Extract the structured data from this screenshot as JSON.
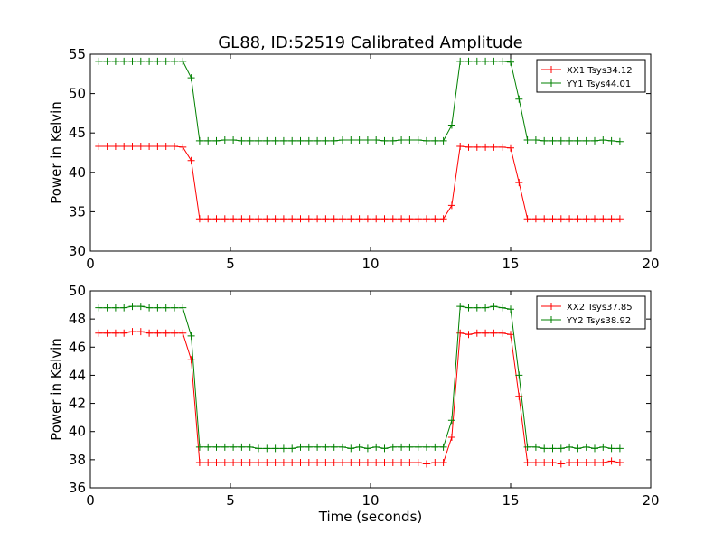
{
  "title": "GL88, ID:52519 Calibrated Amplitude",
  "chart_data": [
    {
      "type": "line",
      "xlabel": "",
      "ylabel": "Power in Kelvin",
      "xlim": [
        0,
        20
      ],
      "ylim": [
        30,
        55
      ],
      "xticks": [
        0,
        5,
        10,
        15,
        20
      ],
      "yticks": [
        30,
        35,
        40,
        45,
        50,
        55
      ],
      "xtick_labels": [
        "0",
        "5",
        "10",
        "15",
        "20"
      ],
      "ytick_labels": [
        "30",
        "35",
        "40",
        "45",
        "50",
        "55"
      ],
      "grid": false,
      "legend_position": "top-right",
      "x": [
        0.3,
        0.6,
        0.9,
        1.2,
        1.5,
        1.8,
        2.1,
        2.4,
        2.7,
        3.0,
        3.3,
        3.6,
        3.9,
        4.2,
        4.5,
        4.8,
        5.1,
        5.4,
        5.7,
        6.0,
        6.3,
        6.6,
        6.9,
        7.2,
        7.5,
        7.8,
        8.1,
        8.4,
        8.7,
        9.0,
        9.3,
        9.6,
        9.9,
        10.2,
        10.5,
        10.8,
        11.1,
        11.4,
        11.7,
        12.0,
        12.3,
        12.6,
        12.9,
        13.2,
        13.5,
        13.8,
        14.1,
        14.4,
        14.7,
        15.0,
        15.3,
        15.6,
        15.9,
        16.2,
        16.5,
        16.8,
        17.1,
        17.4,
        17.7,
        18.0,
        18.3,
        18.6,
        18.9
      ],
      "series": [
        {
          "name": "XX1 Tsys34.12",
          "color": "#ff0000",
          "values": [
            43.3,
            43.3,
            43.3,
            43.3,
            43.3,
            43.3,
            43.3,
            43.3,
            43.3,
            43.3,
            43.2,
            41.5,
            34.1,
            34.1,
            34.1,
            34.1,
            34.1,
            34.1,
            34.1,
            34.1,
            34.1,
            34.1,
            34.1,
            34.1,
            34.1,
            34.1,
            34.1,
            34.1,
            34.1,
            34.1,
            34.1,
            34.1,
            34.1,
            34.1,
            34.1,
            34.1,
            34.1,
            34.1,
            34.1,
            34.1,
            34.1,
            34.1,
            35.8,
            43.3,
            43.2,
            43.2,
            43.2,
            43.2,
            43.2,
            43.1,
            38.7,
            34.1,
            34.1,
            34.1,
            34.1,
            34.1,
            34.1,
            34.1,
            34.1,
            34.1,
            34.1,
            34.1,
            34.1
          ]
        },
        {
          "name": "YY1 Tsys44.01",
          "color": "#008000",
          "values": [
            54.1,
            54.1,
            54.1,
            54.1,
            54.1,
            54.1,
            54.1,
            54.1,
            54.1,
            54.1,
            54.1,
            52.0,
            44.0,
            44.0,
            44.0,
            44.1,
            44.1,
            44.0,
            44.0,
            44.0,
            44.0,
            44.0,
            44.0,
            44.0,
            44.0,
            44.0,
            44.0,
            44.0,
            44.0,
            44.1,
            44.1,
            44.1,
            44.1,
            44.1,
            44.0,
            44.0,
            44.1,
            44.1,
            44.1,
            44.0,
            44.0,
            44.0,
            46.0,
            54.1,
            54.1,
            54.1,
            54.1,
            54.1,
            54.1,
            54.0,
            49.3,
            44.1,
            44.1,
            44.0,
            44.0,
            44.0,
            44.0,
            44.0,
            44.0,
            44.0,
            44.1,
            44.0,
            43.9
          ]
        }
      ]
    },
    {
      "type": "line",
      "xlabel": "Time (seconds)",
      "ylabel": "Power in Kelvin",
      "xlim": [
        0,
        20
      ],
      "ylim": [
        36,
        50
      ],
      "xticks": [
        0,
        5,
        10,
        15,
        20
      ],
      "yticks": [
        36,
        38,
        40,
        42,
        44,
        46,
        48,
        50
      ],
      "xtick_labels": [
        "0",
        "5",
        "10",
        "15",
        "20"
      ],
      "ytick_labels": [
        "36",
        "38",
        "40",
        "42",
        "44",
        "46",
        "48",
        "50"
      ],
      "grid": false,
      "legend_position": "top-right",
      "x": [
        0.3,
        0.6,
        0.9,
        1.2,
        1.5,
        1.8,
        2.1,
        2.4,
        2.7,
        3.0,
        3.3,
        3.6,
        3.9,
        4.2,
        4.5,
        4.8,
        5.1,
        5.4,
        5.7,
        6.0,
        6.3,
        6.6,
        6.9,
        7.2,
        7.5,
        7.8,
        8.1,
        8.4,
        8.7,
        9.0,
        9.3,
        9.6,
        9.9,
        10.2,
        10.5,
        10.8,
        11.1,
        11.4,
        11.7,
        12.0,
        12.3,
        12.6,
        12.9,
        13.2,
        13.5,
        13.8,
        14.1,
        14.4,
        14.7,
        15.0,
        15.3,
        15.6,
        15.9,
        16.2,
        16.5,
        16.8,
        17.1,
        17.4,
        17.7,
        18.0,
        18.3,
        18.6,
        18.9
      ],
      "series": [
        {
          "name": "XX2 Tsys37.85",
          "color": "#ff0000",
          "values": [
            47.0,
            47.0,
            47.0,
            47.0,
            47.1,
            47.1,
            47.0,
            47.0,
            47.0,
            47.0,
            47.0,
            45.1,
            37.8,
            37.8,
            37.8,
            37.8,
            37.8,
            37.8,
            37.8,
            37.8,
            37.8,
            37.8,
            37.8,
            37.8,
            37.8,
            37.8,
            37.8,
            37.8,
            37.8,
            37.8,
            37.8,
            37.8,
            37.8,
            37.8,
            37.8,
            37.8,
            37.8,
            37.8,
            37.8,
            37.7,
            37.8,
            37.8,
            39.6,
            47.0,
            46.9,
            47.0,
            47.0,
            47.0,
            47.0,
            46.9,
            42.5,
            37.8,
            37.8,
            37.8,
            37.8,
            37.7,
            37.8,
            37.8,
            37.8,
            37.8,
            37.8,
            37.9,
            37.8
          ]
        },
        {
          "name": "YY2 Tsys38.92",
          "color": "#008000",
          "values": [
            48.8,
            48.8,
            48.8,
            48.8,
            48.9,
            48.9,
            48.8,
            48.8,
            48.8,
            48.8,
            48.8,
            46.8,
            38.9,
            38.9,
            38.9,
            38.9,
            38.9,
            38.9,
            38.9,
            38.8,
            38.8,
            38.8,
            38.8,
            38.8,
            38.9,
            38.9,
            38.9,
            38.9,
            38.9,
            38.9,
            38.8,
            38.9,
            38.8,
            38.9,
            38.8,
            38.9,
            38.9,
            38.9,
            38.9,
            38.9,
            38.9,
            38.9,
            40.8,
            48.9,
            48.8,
            48.8,
            48.8,
            48.9,
            48.8,
            48.7,
            44.0,
            38.9,
            38.9,
            38.8,
            38.8,
            38.8,
            38.9,
            38.8,
            38.9,
            38.8,
            38.9,
            38.8,
            38.8
          ]
        }
      ]
    }
  ]
}
